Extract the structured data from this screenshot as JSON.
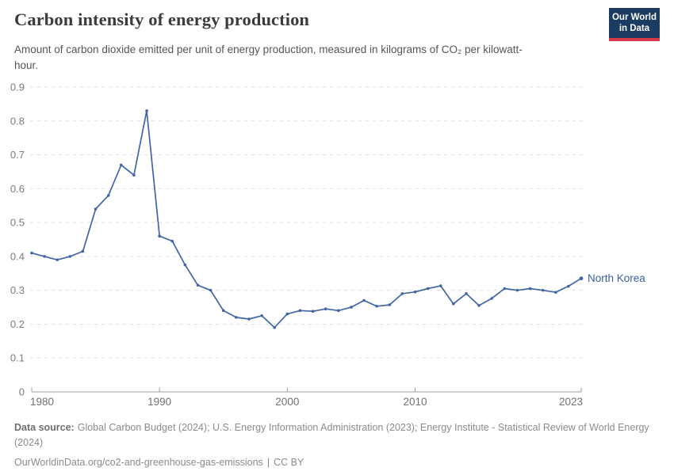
{
  "header": {
    "title": "Carbon intensity of energy production",
    "subtitle": "Amount of carbon dioxide emitted per unit of energy production, measured in kilograms of CO₂ per kilowatt-hour.",
    "logo": {
      "line1": "Our World",
      "line2": "in Data"
    }
  },
  "chart_data": {
    "type": "line",
    "title": "Carbon intensity of energy production",
    "xlabel": "",
    "ylabel": "kilograms of CO₂ per kilowatt-hour",
    "ylim": [
      0,
      0.9
    ],
    "yticks": [
      0,
      0.1,
      0.2,
      0.3,
      0.4,
      0.5,
      0.6,
      0.7,
      0.8,
      0.9
    ],
    "xticks": [
      1980,
      1990,
      2000,
      2010,
      2023
    ],
    "grid": "dashed-horizontal",
    "legend_position": "end-of-line",
    "x": [
      1980,
      1981,
      1982,
      1983,
      1984,
      1985,
      1986,
      1987,
      1988,
      1989,
      1990,
      1991,
      1992,
      1993,
      1994,
      1995,
      1996,
      1997,
      1998,
      1999,
      2000,
      2001,
      2002,
      2003,
      2004,
      2005,
      2006,
      2007,
      2008,
      2009,
      2010,
      2011,
      2012,
      2013,
      2014,
      2015,
      2016,
      2017,
      2018,
      2019,
      2020,
      2021,
      2022,
      2023
    ],
    "series": [
      {
        "name": "North Korea",
        "color": "#4066a3",
        "values": [
          0.41,
          0.4,
          0.39,
          0.4,
          0.415,
          0.54,
          0.58,
          0.67,
          0.64,
          0.83,
          0.46,
          0.445,
          0.375,
          0.315,
          0.3,
          0.24,
          0.22,
          0.215,
          0.225,
          0.19,
          0.23,
          0.24,
          0.238,
          0.245,
          0.24,
          0.25,
          0.27,
          0.253,
          0.257,
          0.29,
          0.295,
          0.305,
          0.313,
          0.26,
          0.29,
          0.255,
          0.276,
          0.305,
          0.3,
          0.305,
          0.3,
          0.294,
          0.312,
          0.335
        ]
      }
    ]
  },
  "footer": {
    "source_label": "Data source:",
    "sources": "Global Carbon Budget (2024); U.S. Energy Information Administration (2023); Energy Institute - Statistical Review of World Energy (2024)",
    "url": "OurWorldinData.org/co2-and-greenhouse-gas-emissions",
    "separator": "|",
    "license": "CC BY"
  },
  "colors": {
    "line": "#4066a3",
    "entity_label": "#3a61a1",
    "grid": "#dedede",
    "axis": "#9e9e9e",
    "axis_text": "#707070",
    "logo_bg": "#1c3b61",
    "logo_accent": "#d93a4a"
  }
}
